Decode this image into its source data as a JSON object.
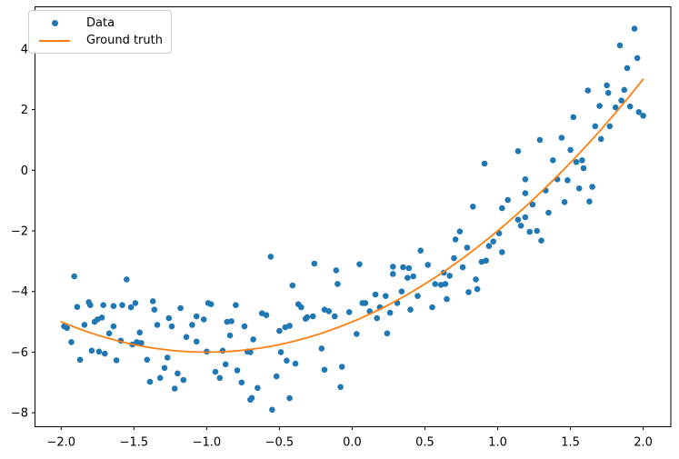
{
  "chart_data": {
    "type": "scatter",
    "title": "",
    "xlabel": "",
    "ylabel": "",
    "grid": false,
    "legend_position": "upper left",
    "legend": [
      {
        "label": "Data",
        "marker": "dot",
        "color": "#1f77b4"
      },
      {
        "label": "Ground truth",
        "marker": "line",
        "color": "#ff7f0e"
      }
    ],
    "colors": {
      "data_points": "#1f77b4",
      "ground_truth_line": "#ff7f0e",
      "axis": "#000000"
    },
    "xlim": [
      -2.18,
      2.19
    ],
    "ylim": [
      -8.46,
      5.39
    ],
    "x_ticks": [
      -2.0,
      -1.5,
      -1.0,
      -0.5,
      0.0,
      0.5,
      1.0,
      1.5,
      2.0
    ],
    "x_tick_labels": [
      "−2.0",
      "−1.5",
      "−1.0",
      "−0.5",
      "0.0",
      "0.5",
      "1.0",
      "1.5",
      "2.0"
    ],
    "y_ticks": [
      -8,
      -6,
      -4,
      -2,
      0,
      2,
      4
    ],
    "y_tick_labels": [
      "−8",
      "−6",
      "−4",
      "−2",
      "0",
      "2",
      "4"
    ],
    "ground_truth": {
      "formula": "y = x^2 + 2x - 5",
      "coefficients": [
        1,
        2,
        -5
      ],
      "x_range": [
        -2.0,
        2.0
      ]
    },
    "series": [
      {
        "name": "Data",
        "x": [
          -1.98,
          -1.96,
          -1.93,
          -1.91,
          -1.89,
          -1.87,
          -1.84,
          -1.81,
          -1.8,
          -1.79,
          -1.77,
          -1.75,
          -1.74,
          -1.72,
          -1.71,
          -1.7,
          -1.67,
          -1.64,
          -1.64,
          -1.62,
          -1.59,
          -1.58,
          -1.55,
          -1.52,
          -1.51,
          -1.49,
          -1.48,
          -1.46,
          -1.45,
          -1.41,
          -1.39,
          -1.37,
          -1.36,
          -1.34,
          -1.32,
          -1.29,
          -1.27,
          -1.26,
          -1.24,
          -1.22,
          -1.2,
          -1.18,
          -1.16,
          -1.14,
          -1.1,
          -1.07,
          -1.07,
          -1.02,
          -1.0,
          -0.99,
          -0.97,
          -0.94,
          -0.91,
          -0.89,
          -0.87,
          -0.86,
          -0.84,
          -0.83,
          -0.8,
          -0.79,
          -0.76,
          -0.74,
          -0.72,
          -0.7,
          -0.7,
          -0.69,
          -0.68,
          -0.65,
          -0.62,
          -0.59,
          -0.56,
          -0.55,
          -0.52,
          -0.5,
          -0.49,
          -0.46,
          -0.45,
          -0.43,
          -0.43,
          -0.41,
          -0.39,
          -0.37,
          -0.35,
          -0.32,
          -0.31,
          -0.27,
          -0.26,
          -0.21,
          -0.19,
          -0.19,
          -0.16,
          -0.12,
          -0.11,
          -0.1,
          -0.08,
          -0.07,
          -0.02,
          0.03,
          0.05,
          0.07,
          0.09,
          0.12,
          0.16,
          0.17,
          0.19,
          0.23,
          0.24,
          0.26,
          0.28,
          0.28,
          0.31,
          0.34,
          0.35,
          0.38,
          0.39,
          0.4,
          0.42,
          0.45,
          0.47,
          0.52,
          0.55,
          0.57,
          0.61,
          0.63,
          0.64,
          0.65,
          0.67,
          0.7,
          0.71,
          0.74,
          0.76,
          0.79,
          0.8,
          0.83,
          0.85,
          0.86,
          0.89,
          0.91,
          0.92,
          0.94,
          0.97,
          1.01,
          1.03,
          1.03,
          1.07,
          1.14,
          1.14,
          1.16,
          1.19,
          1.19,
          1.19,
          1.22,
          1.24,
          1.27,
          1.29,
          1.3,
          1.33,
          1.35,
          1.38,
          1.41,
          1.44,
          1.46,
          1.48,
          1.5,
          1.52,
          1.54,
          1.56,
          1.58,
          1.59,
          1.62,
          1.63,
          1.65,
          1.67,
          1.7,
          1.71,
          1.75,
          1.76,
          1.77,
          1.81,
          1.84,
          1.85,
          1.87,
          1.89,
          1.91,
          1.94,
          1.96,
          1.97,
          2.0
        ],
        "y": [
          -5.15,
          -5.2,
          -5.67,
          -3.5,
          -4.51,
          -6.25,
          -5.1,
          -4.35,
          -4.45,
          -5.95,
          -5.0,
          -4.92,
          -5.98,
          -4.86,
          -4.45,
          -6.05,
          -5.38,
          -5.15,
          -4.48,
          -6.27,
          -5.62,
          -4.45,
          -3.6,
          -4.52,
          -5.75,
          -4.38,
          -5.67,
          -5.35,
          -5.7,
          -6.25,
          -6.98,
          -4.32,
          -4.6,
          -5.1,
          -6.85,
          -6.52,
          -6.18,
          -4.88,
          -5.15,
          -7.2,
          -6.7,
          -4.55,
          -6.92,
          -5.5,
          -5.1,
          -4.82,
          -5.65,
          -4.92,
          -5.98,
          -4.38,
          -4.42,
          -6.65,
          -6.85,
          -5.95,
          -6.4,
          -5.0,
          -5.45,
          -4.98,
          -4.45,
          -6.6,
          -7.0,
          -5.15,
          -5.98,
          -6.0,
          -7.57,
          -7.51,
          -5.58,
          -7.18,
          -4.72,
          -4.78,
          -2.85,
          -7.9,
          -6.8,
          -5.3,
          -6.0,
          -5.18,
          -6.28,
          -5.13,
          -7.52,
          -3.8,
          -6.38,
          -4.42,
          -4.52,
          -4.9,
          -4.85,
          -4.82,
          -3.08,
          -5.88,
          -6.58,
          -4.6,
          -4.65,
          -4.82,
          -3.3,
          -3.75,
          -7.15,
          -6.48,
          -4.68,
          -5.4,
          -3.1,
          -4.38,
          -4.38,
          -4.65,
          -4.1,
          -4.88,
          -4.52,
          -4.15,
          -5.38,
          -4.7,
          -3.18,
          -3.42,
          -4.38,
          -4.0,
          -3.2,
          -3.55,
          -3.23,
          -4.6,
          -3.5,
          -4.15,
          -2.65,
          -3.12,
          -4.52,
          -3.75,
          -3.78,
          -3.38,
          -3.75,
          -4.25,
          -3.48,
          -2.9,
          -2.28,
          -2.02,
          -3.2,
          -2.55,
          -4.02,
          -1.2,
          -3.6,
          -3.92,
          -3.02,
          0.22,
          -2.98,
          -2.5,
          -2.35,
          -2.08,
          -2.7,
          -1.25,
          -0.98,
          0.63,
          -1.63,
          -1.83,
          -0.3,
          -0.76,
          -1.55,
          -2.03,
          -1.13,
          -2.0,
          1.0,
          -2.32,
          -0.67,
          -1.4,
          0.33,
          -0.3,
          1.07,
          -1.05,
          -0.33,
          0.67,
          1.75,
          0.27,
          -0.6,
          0.33,
          0.07,
          2.63,
          -1.03,
          -0.55,
          1.45,
          2.12,
          1.03,
          2.8,
          2.55,
          1.45,
          2.07,
          4.12,
          2.3,
          2.65,
          3.37,
          2.1,
          4.67,
          3.7,
          1.92,
          1.8
        ]
      }
    ]
  }
}
